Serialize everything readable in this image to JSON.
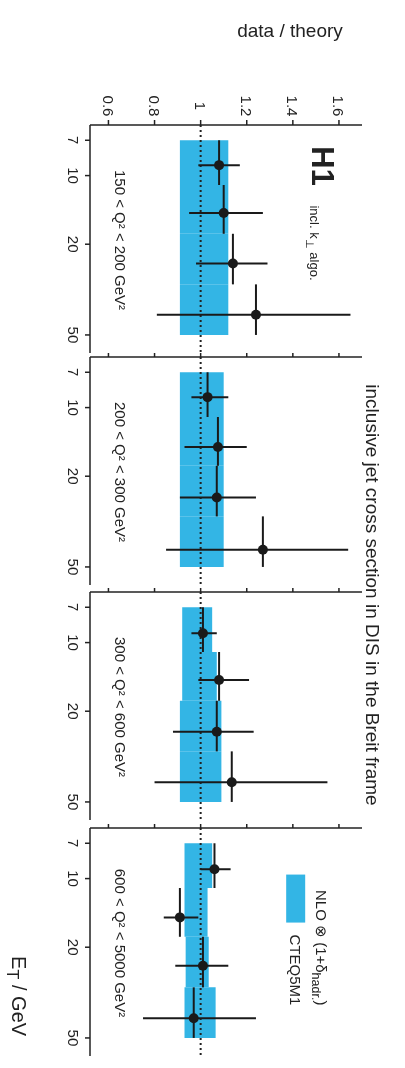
{
  "chart_data": [
    {
      "type": "scatter",
      "orientation": "horizontal",
      "title": "inclusive jet cross section in DIS in the Breit frame",
      "xlabel": "data / theory",
      "annotations": [
        "150 < Q² < 200 GeV²",
        "H1",
        "incl. k$_{⊥}$ algo."
      ],
      "xlim": [
        0.52,
        1.7
      ],
      "xticks": [
        0.6,
        0.8,
        1,
        1.2,
        1.4,
        1.6
      ],
      "ylim": [
        60,
        6
      ],
      "yticks": [
        7,
        10,
        20,
        50
      ],
      "log": "y",
      "marker": "circle",
      "ref_lines": [
        {
          "axis": "x",
          "value": 1,
          "line_style": "dotted",
          "color": "#222222"
        }
      ],
      "series": [
        {
          "type": "histogram",
          "color": "#33b5e5",
          "bins": [
            7,
            11,
            18,
            30,
            50
          ],
          "base": [
            0.91,
            0.91,
            0.91,
            0.91
          ],
          "values": [
            0.21,
            0.21,
            0.21,
            0.21
          ]
        },
        {
          "type": "scatter",
          "color": "#1a1a1a",
          "x": [
            9,
            14.6,
            24.3,
            40.8
          ],
          "values": [
            1.08,
            1.1,
            1.14,
            1.24
          ],
          "errors": [
            [
              0.99,
              1.17
            ],
            [
              0.95,
              1.27
            ],
            [
              0.98,
              1.29
            ],
            [
              0.81,
              1.65
            ]
          ],
          "xerrors": [
            [
              7,
              11
            ],
            [
              11,
              18
            ],
            [
              18,
              30
            ],
            [
              30,
              50
            ]
          ]
        }
      ]
    },
    {
      "type": "scatter",
      "orientation": "horizontal",
      "annotations": [
        "200 < Q² < 300 GeV²"
      ],
      "xlim": [
        0.52,
        1.7
      ],
      "xticks": [
        0.6,
        0.8,
        1,
        1.2,
        1.4,
        1.6
      ],
      "ylim": [
        60,
        6
      ],
      "yticks": [
        7,
        10,
        20,
        50
      ],
      "log": "y",
      "tick_labels": "y",
      "marker": "circle",
      "ref_lines": [
        {
          "axis": "x",
          "value": 1,
          "line_style": "dotted",
          "color": "#222222"
        }
      ],
      "series": [
        {
          "type": "histogram",
          "color": "#33b5e5",
          "bins": [
            7,
            11,
            18,
            30,
            50
          ],
          "base": [
            0.91,
            0.91,
            0.91,
            0.91
          ],
          "values": [
            0.19,
            0.19,
            0.19,
            0.19
          ]
        },
        {
          "type": "scatter",
          "color": "#1a1a1a",
          "x": [
            9,
            14.9,
            24.8,
            42
          ],
          "values": [
            1.03,
            1.075,
            1.07,
            1.27
          ],
          "errors": [
            [
              0.96,
              1.12
            ],
            [
              0.93,
              1.2
            ],
            [
              0.91,
              1.24
            ],
            [
              0.85,
              1.64
            ]
          ],
          "xerrors": [
            [
              7,
              11
            ],
            [
              11,
              18
            ],
            [
              18,
              30
            ],
            [
              30,
              50
            ]
          ]
        }
      ]
    },
    {
      "type": "scatter",
      "orientation": "horizontal",
      "annotations": [
        "300 < Q² < 600 GeV²"
      ],
      "xlim": [
        0.52,
        1.7
      ],
      "xticks": [
        0.6,
        0.8,
        1,
        1.2,
        1.4,
        1.6
      ],
      "ylim": [
        60,
        6
      ],
      "yticks": [
        7,
        10,
        20,
        50
      ],
      "log": "y",
      "tick_labels": "y",
      "marker": "circle",
      "ref_lines": [
        {
          "axis": "x",
          "value": 1,
          "line_style": "dotted",
          "color": "#222222"
        }
      ],
      "series": [
        {
          "type": "histogram",
          "color": "#33b5e5",
          "bins": [
            7,
            11,
            18,
            30,
            50
          ],
          "base": [
            0.92,
            0.92,
            0.91,
            0.91
          ],
          "values": [
            0.13,
            0.15,
            0.18,
            0.18
          ]
        },
        {
          "type": "scatter",
          "color": "#1a1a1a",
          "x": [
            9.1,
            14.6,
            24.6,
            41
          ],
          "values": [
            1.01,
            1.08,
            1.07,
            1.135
          ],
          "errors": [
            [
              0.96,
              1.07
            ],
            [
              0.99,
              1.21
            ],
            [
              0.88,
              1.23
            ],
            [
              0.8,
              1.55
            ]
          ],
          "xerrors": [
            [
              7,
              11
            ],
            [
              11,
              18
            ],
            [
              18,
              30
            ],
            [
              30,
              50
            ]
          ]
        }
      ]
    },
    {
      "type": "scatter",
      "orientation": "horizontal",
      "ylabel": "E$_{T}$ / GeV",
      "annotations": [
        "600 < Q² < 5000 GeV²"
      ],
      "legend": "bottom right",
      "xlim": [
        0.52,
        1.7
      ],
      "xticks": [
        0.6,
        0.8,
        1,
        1.2,
        1.4,
        1.6
      ],
      "ylim": [
        60,
        6
      ],
      "yticks": [
        7,
        10,
        20,
        50
      ],
      "log": "y",
      "tick_labels": "y",
      "marker": "circle",
      "ref_lines": [
        {
          "axis": "x",
          "value": 1,
          "line_style": "dotted",
          "color": "#222222"
        }
      ],
      "series": [
        {
          "type": "histogram",
          "name": "NLO ⊗ (1+δ$_{hadr.}$)\nCTEQ5M1",
          "color": "#33b5e5",
          "bins": [
            7,
            11,
            18,
            30,
            50
          ],
          "base": [
            0.93,
            0.93,
            0.935,
            0.93
          ],
          "values": [
            0.12,
            0.1,
            0.1,
            0.135
          ]
        },
        {
          "type": "scatter",
          "color": "#1a1a1a",
          "x": [
            9.1,
            14.8,
            24.1,
            41
          ],
          "values": [
            1.06,
            0.91,
            1.01,
            0.97
          ],
          "errors": [
            [
              1.0,
              1.13
            ],
            [
              0.84,
              0.99
            ],
            [
              0.89,
              1.12
            ],
            [
              0.75,
              1.24
            ]
          ],
          "xerrors": [
            [
              7,
              11
            ],
            [
              11,
              18
            ],
            [
              18,
              30
            ],
            [
              30,
              50
            ]
          ]
        }
      ]
    }
  ]
}
